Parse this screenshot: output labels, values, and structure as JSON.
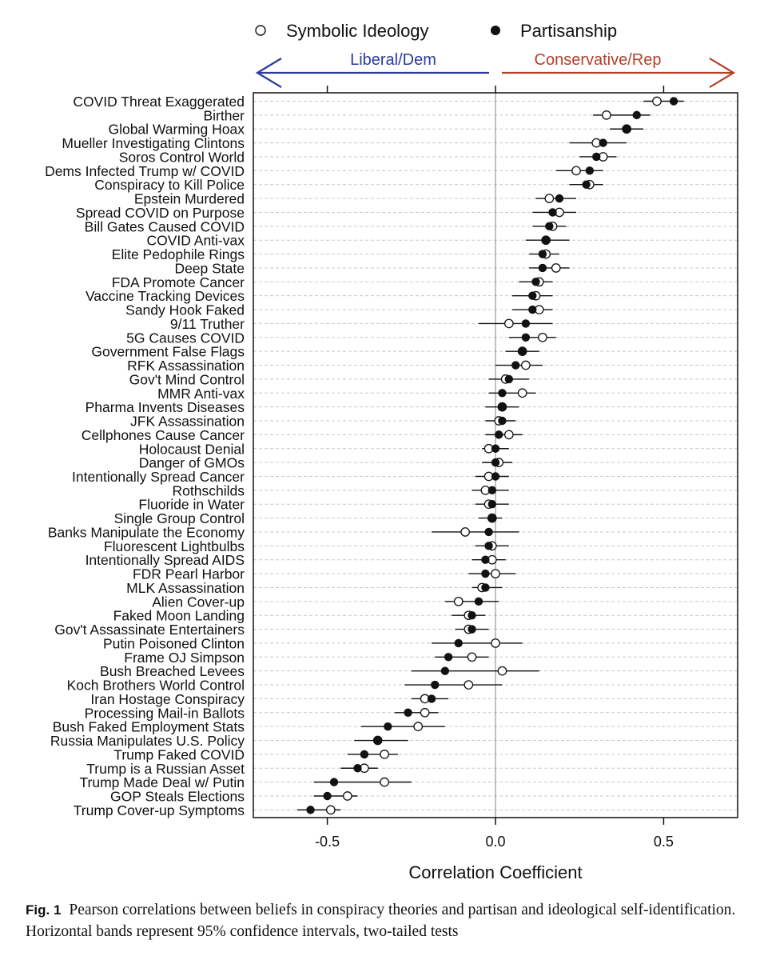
{
  "chart_data": {
    "type": "scatter",
    "xlabel": "Correlation Coefficient",
    "xlim": [
      -0.72,
      0.72
    ],
    "xticks": [
      -0.5,
      0.0,
      0.5
    ],
    "xtick_labels": [
      "-0.5",
      "0.0",
      "0.5"
    ],
    "grid": "horizontal dashed",
    "legend_position": "top",
    "direction_labels": {
      "left": "Liberal/Dem",
      "right": "Conservative/Rep"
    },
    "colors": {
      "liberal": "#2b3a9e",
      "conservative": "#b5402a"
    },
    "series": [
      {
        "name": "Symbolic Ideology",
        "marker": "open-circle",
        "values": [
          0.48,
          0.33,
          0.39,
          0.3,
          0.32,
          0.24,
          0.28,
          0.16,
          0.19,
          0.17,
          0.15,
          0.15,
          0.18,
          0.13,
          0.12,
          0.13,
          0.04,
          0.14,
          0.08,
          0.09,
          0.03,
          0.08,
          0.02,
          0.01,
          0.04,
          -0.02,
          0.01,
          -0.02,
          -0.03,
          -0.02,
          -0.01,
          -0.09,
          -0.01,
          -0.01,
          0.0,
          -0.04,
          -0.11,
          -0.08,
          -0.08,
          0.0,
          -0.07,
          0.02,
          -0.08,
          -0.21,
          -0.21,
          -0.23,
          -0.35,
          -0.33,
          -0.39,
          -0.33,
          -0.44,
          -0.49
        ]
      },
      {
        "name": "Partisanship",
        "marker": "filled-circle",
        "values": [
          0.53,
          0.42,
          0.39,
          0.32,
          0.3,
          0.28,
          0.27,
          0.19,
          0.17,
          0.16,
          0.15,
          0.14,
          0.14,
          0.12,
          0.11,
          0.11,
          0.09,
          0.09,
          0.08,
          0.06,
          0.04,
          0.02,
          0.02,
          0.02,
          0.01,
          0.0,
          0.0,
          0.0,
          -0.01,
          -0.01,
          -0.01,
          -0.02,
          -0.02,
          -0.03,
          -0.03,
          -0.03,
          -0.05,
          -0.07,
          -0.07,
          -0.11,
          -0.14,
          -0.15,
          -0.18,
          -0.19,
          -0.26,
          -0.32,
          -0.35,
          -0.39,
          -0.41,
          -0.48,
          -0.5,
          -0.55
        ]
      }
    ],
    "categories": [
      "COVID Threat Exaggerated",
      "Birther",
      "Global Warming Hoax",
      "Mueller Investigating Clintons",
      "Soros Control World",
      "Dems Infected Trump w/ COVID",
      "Conspiracy to Kill Police",
      "Epstein Murdered",
      "Spread COVID on Purpose",
      "Bill Gates Caused COVID",
      "COVID Anti-vax",
      "Elite Pedophile Rings",
      "Deep State",
      "FDA Promote Cancer",
      "Vaccine Tracking Devices",
      "Sandy Hook Faked",
      "9/11 Truther",
      "5G Causes COVID",
      "Government False Flags",
      "RFK Assassination",
      "Gov't Mind Control",
      "MMR Anti-vax",
      "Pharma Invents Diseases",
      "JFK Assassination",
      "Cellphones Cause Cancer",
      "Holocaust Denial",
      "Danger of GMOs",
      "Intentionally Spread Cancer",
      "Rothschilds",
      "Fluoride in Water",
      "Single Group Control",
      "Banks Manipulate the Economy",
      "Fluorescent Lightbulbs",
      "Intentionally Spread AIDS",
      "FDR Pearl Harbor",
      "MLK Assassination",
      "Alien Cover-up",
      "Faked Moon Landing",
      "Gov't Assassinate Entertainers",
      "Putin Poisoned Clinton",
      "Frame OJ Simpson",
      "Bush Breached Levees",
      "Koch Brothers World Control",
      "Iran Hostage Conspiracy",
      "Processing Mail-in Ballots",
      "Bush Faked Employment Stats",
      "Russia Manipulates U.S. Policy",
      "Trump Faked COVID",
      "Trump is a Russian Asset",
      "Trump Made Deal w/ Putin",
      "GOP Steals Elections",
      "Trump Cover-up Symptoms"
    ],
    "ci": [
      [
        0.44,
        0.56
      ],
      [
        0.29,
        0.46
      ],
      [
        0.34,
        0.44
      ],
      [
        0.22,
        0.39
      ],
      [
        0.25,
        0.36
      ],
      [
        0.18,
        0.32
      ],
      [
        0.22,
        0.32
      ],
      [
        0.12,
        0.24
      ],
      [
        0.11,
        0.24
      ],
      [
        0.11,
        0.21
      ],
      [
        0.09,
        0.22
      ],
      [
        0.1,
        0.19
      ],
      [
        0.1,
        0.22
      ],
      [
        0.07,
        0.17
      ],
      [
        0.05,
        0.17
      ],
      [
        0.05,
        0.17
      ],
      [
        -0.05,
        0.17
      ],
      [
        0.04,
        0.18
      ],
      [
        0.03,
        0.13
      ],
      [
        0.0,
        0.14
      ],
      [
        -0.02,
        0.1
      ],
      [
        -0.02,
        0.12
      ],
      [
        -0.03,
        0.07
      ],
      [
        -0.03,
        0.06
      ],
      [
        -0.03,
        0.08
      ],
      [
        -0.04,
        0.04
      ],
      [
        -0.04,
        0.05
      ],
      [
        -0.06,
        0.04
      ],
      [
        -0.07,
        0.04
      ],
      [
        -0.06,
        0.04
      ],
      [
        -0.05,
        0.02
      ],
      [
        -0.19,
        0.07
      ],
      [
        -0.06,
        0.04
      ],
      [
        -0.07,
        0.03
      ],
      [
        -0.08,
        0.06
      ],
      [
        -0.07,
        0.02
      ],
      [
        -0.15,
        0.01
      ],
      [
        -0.13,
        -0.03
      ],
      [
        -0.12,
        -0.02
      ],
      [
        -0.19,
        0.08
      ],
      [
        -0.18,
        -0.02
      ],
      [
        -0.25,
        0.13
      ],
      [
        -0.27,
        0.02
      ],
      [
        -0.25,
        -0.14
      ],
      [
        -0.3,
        -0.17
      ],
      [
        -0.4,
        -0.15
      ],
      [
        -0.42,
        -0.26
      ],
      [
        -0.44,
        -0.29
      ],
      [
        -0.46,
        -0.35
      ],
      [
        -0.54,
        -0.25
      ],
      [
        -0.54,
        -0.41
      ],
      [
        -0.59,
        -0.46
      ]
    ]
  },
  "legend": {
    "symbolic": "Symbolic Ideology",
    "partisanship": "Partisanship"
  },
  "caption": {
    "label": "Fig. 1",
    "text": "Pearson correlations between beliefs in conspiracy theories and partisan and ideological self-identification. Horizontal bands represent 95% confidence intervals, two-tailed tests"
  }
}
